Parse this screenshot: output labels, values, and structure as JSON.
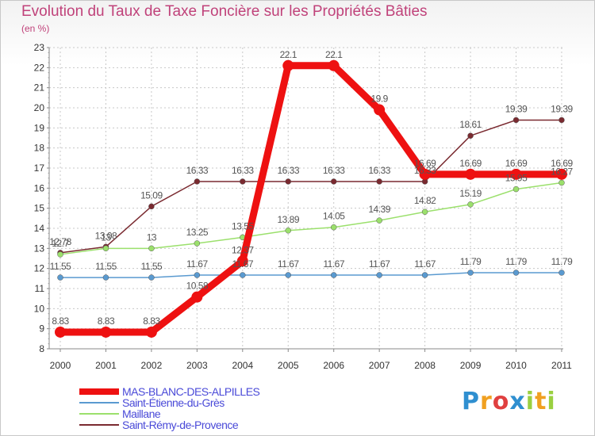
{
  "chart_data": {
    "type": "line",
    "title": "Evolution du Taux de Taxe Foncière sur les Propriétés Bâties",
    "unit_label": "(en %)",
    "x": [
      "2000",
      "2001",
      "2002",
      "2003",
      "2004",
      "2005",
      "2006",
      "2007",
      "2008",
      "2009",
      "2010",
      "2011"
    ],
    "ylim": [
      8,
      23
    ],
    "y_ticks": [
      "8",
      "9",
      "10",
      "11",
      "12",
      "13",
      "14",
      "15",
      "16",
      "17",
      "18",
      "19",
      "20",
      "21",
      "22",
      "23"
    ],
    "series": [
      {
        "name": "MAS-BLANC-DES-ALPILLES",
        "color": "#ee1111",
        "values": [
          8.83,
          8.83,
          8.83,
          10.58,
          12.37,
          22.1,
          22.1,
          19.9,
          16.69,
          16.69,
          16.69,
          16.69
        ],
        "labels": [
          "8.83",
          "8.83",
          "8.83",
          "10.58",
          "12.37",
          "22.1",
          "22.1",
          "19.9",
          "16.69",
          "16.69",
          "16.69",
          "16.69"
        ]
      },
      {
        "name": "Saint-Étienne-du-Grès",
        "color": "#5a9ad0",
        "values": [
          11.55,
          11.55,
          11.55,
          11.67,
          11.67,
          11.67,
          11.67,
          11.67,
          11.67,
          11.79,
          11.79,
          11.79
        ],
        "labels": [
          "11.55",
          "11.55",
          "11.55",
          "11.67",
          "11.67",
          "11.67",
          "11.67",
          "11.67",
          "11.67",
          "11.79",
          "11.79",
          "11.79"
        ]
      },
      {
        "name": "Maillane",
        "color": "#9be06c",
        "values": [
          12.7,
          13,
          13,
          13.25,
          13.55,
          13.89,
          14.05,
          14.39,
          14.82,
          15.19,
          15.95,
          16.27
        ],
        "labels": [
          "12.7",
          "13",
          "13",
          "13.25",
          "13.55",
          "13.89",
          "14.05",
          "14.39",
          "14.82",
          "15.19",
          "15.95",
          "16.27"
        ]
      },
      {
        "name": "Saint-Rémy-de-Provence",
        "color": "#7a2a30",
        "values": [
          12.78,
          13.08,
          15.09,
          16.33,
          16.33,
          16.33,
          16.33,
          16.33,
          16.33,
          18.61,
          19.39,
          19.39
        ],
        "labels": [
          "12.78",
          "13.08",
          "15.09",
          "16.33",
          "16.33",
          "16.33",
          "16.33",
          "16.33",
          "16.33",
          "18.61",
          "19.39",
          "19.39"
        ]
      }
    ]
  },
  "legend": {
    "items": [
      {
        "name": "MAS-BLANC-DES-ALPILLES"
      },
      {
        "name": "Saint-Étienne-du-Grès"
      },
      {
        "name": "Maillane"
      },
      {
        "name": "Saint-Rémy-de-Provence"
      }
    ]
  },
  "logo": {
    "letters": [
      {
        "char": "P",
        "color": "#2f8fd0"
      },
      {
        "char": "r",
        "color": "#f0a020"
      },
      {
        "char": "o",
        "color": "#e04040"
      },
      {
        "char": "x",
        "color": "#2f8fd0"
      },
      {
        "char": "i",
        "color": "#9ad040"
      },
      {
        "char": "t",
        "color": "#f0a020"
      },
      {
        "char": "i",
        "color": "#9ad040"
      }
    ]
  }
}
